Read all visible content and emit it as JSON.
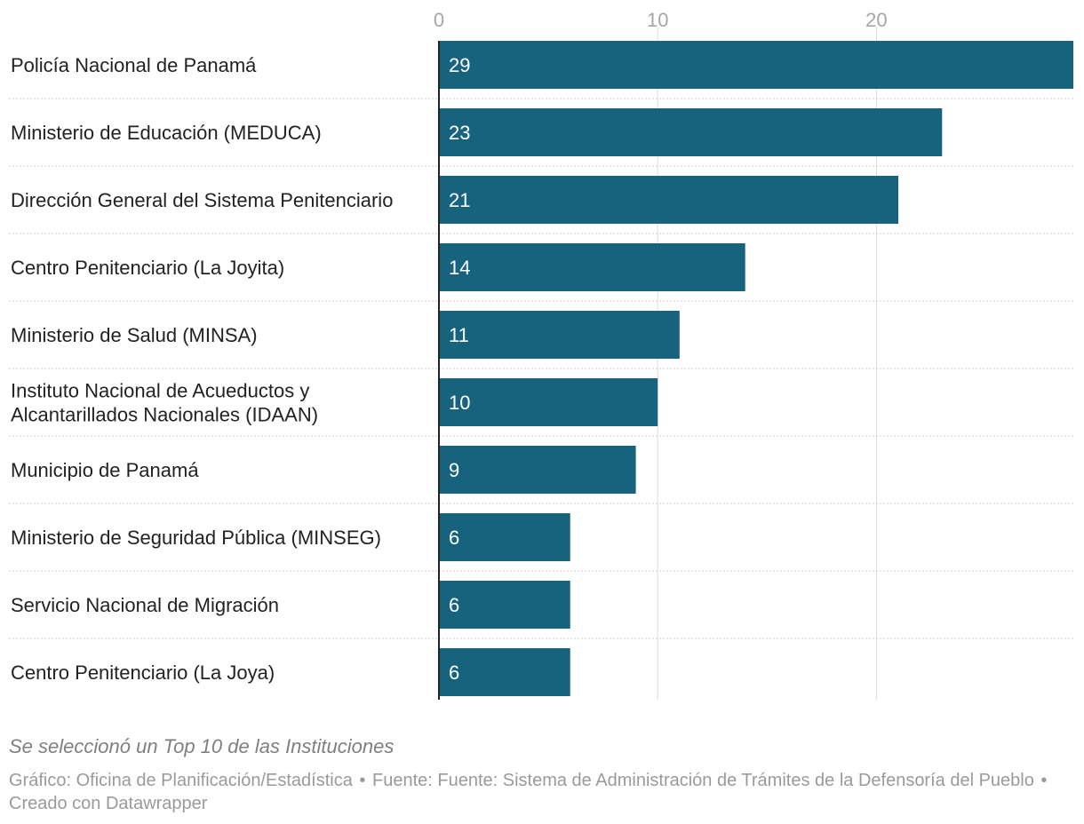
{
  "chart_data": {
    "type": "bar",
    "orientation": "horizontal",
    "categories": [
      [
        "Policía Nacional de Panamá"
      ],
      [
        "Ministerio de Educación (MEDUCA)"
      ],
      [
        "Dirección General del Sistema Penitenciario"
      ],
      [
        "Centro Penitenciario (La Joyita)"
      ],
      [
        "Ministerio de Salud (MINSA)"
      ],
      [
        "Instituto Nacional de Acueductos y",
        "Alcantarillados Nacionales (IDAAN)"
      ],
      [
        "Municipio de Panamá"
      ],
      [
        "Ministerio de Seguridad Pública (MINSEG)"
      ],
      [
        "Servicio Nacional de Migración"
      ],
      [
        "Centro Penitenciario (La Joya)"
      ]
    ],
    "values": [
      29,
      23,
      21,
      14,
      11,
      10,
      9,
      6,
      6,
      6
    ],
    "xticks": [
      0,
      10,
      20
    ],
    "xlim": [
      0,
      29
    ],
    "grid": true,
    "value_labels": "inside-left",
    "colors": {
      "bar": "#17637d",
      "label": "#222222",
      "tick": "#a6a6a6",
      "gridline": "#dddddd",
      "separator": "#cccccc",
      "axis": "#222222",
      "value_text": "#ffffff"
    }
  },
  "notes": "Se seleccionó un Top 10 de las Instituciones",
  "byline": {
    "chart_by": "Gráfico: Oficina de Planificación/Estadística",
    "separator": "•",
    "source": "Fuente: Fuente: Sistema de Administración de Trámites de la Defensoría del Pueblo",
    "tool": "Creado con Datawrapper"
  }
}
